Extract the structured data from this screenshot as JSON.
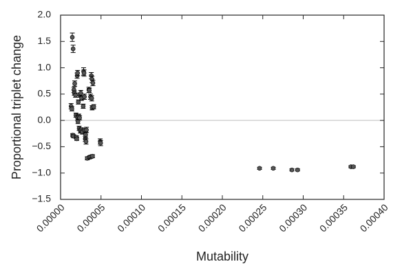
{
  "chart_data": {
    "type": "scatter",
    "title": "",
    "xlabel": "Mutability",
    "ylabel": "Proportional triplet change",
    "xlim": [
      0,
      0.0004
    ],
    "ylim": [
      -1.5,
      2.0
    ],
    "x_ticks": [
      0.0,
      5e-05,
      0.0001,
      0.00015,
      0.0002,
      0.00025,
      0.0003,
      0.00035,
      0.0004
    ],
    "x_tick_labels": [
      "0.00000",
      "0.00005",
      "0.00010",
      "0.00015",
      "0.00020",
      "0.00025",
      "0.00030",
      "0.00035",
      "0.00040"
    ],
    "y_ticks": [
      -1.5,
      -1.0,
      -0.5,
      0.0,
      0.5,
      1.0,
      1.5,
      2.0
    ],
    "y_tick_labels": [
      "−1.5",
      "−1.0",
      "−0.5",
      "0.0",
      "0.5",
      "1.0",
      "1.5",
      "2.0"
    ],
    "reference_line_y": 0,
    "grid": false,
    "colors": {
      "marker": "#555555",
      "errorbar": "#000000",
      "reference_line": "#c8c8c8",
      "frame": "#222222"
    },
    "series": [
      {
        "points": [
          {
            "x": 1.45e-05,
            "y": 1.58,
            "err": 0.08
          },
          {
            "x": 1.55e-05,
            "y": 1.36,
            "err": 0.07
          },
          {
            "x": 1.3e-05,
            "y": 0.27,
            "err": 0.05
          },
          {
            "x": 1.4e-05,
            "y": 0.22,
            "err": 0.04
          },
          {
            "x": 1.5e-05,
            "y": -0.28,
            "err": 0.03
          },
          {
            "x": 1.6e-05,
            "y": -0.3,
            "err": 0.03
          },
          {
            "x": 1.65e-05,
            "y": 0.58,
            "err": 0.05
          },
          {
            "x": 1.7e-05,
            "y": 0.52,
            "err": 0.04
          },
          {
            "x": 1.75e-05,
            "y": 0.7,
            "err": 0.05
          },
          {
            "x": 1.85e-05,
            "y": 0.48,
            "err": 0.04
          },
          {
            "x": 1.9e-05,
            "y": 0.1,
            "err": 0.04
          },
          {
            "x": 1.95e-05,
            "y": -0.32,
            "err": 0.03
          },
          {
            "x": 2e-05,
            "y": -0.35,
            "err": 0.03
          },
          {
            "x": 2.05e-05,
            "y": 0.85,
            "err": 0.05
          },
          {
            "x": 2.1e-05,
            "y": 0.9,
            "err": 0.05
          },
          {
            "x": 2.1e-05,
            "y": 0.05,
            "err": 0.05
          },
          {
            "x": 2.15e-05,
            "y": -0.02,
            "err": 0.04
          },
          {
            "x": 2.2e-05,
            "y": 0.35,
            "err": 0.04
          },
          {
            "x": 2.25e-05,
            "y": 0.08,
            "err": 0.04
          },
          {
            "x": 2.3e-05,
            "y": -0.15,
            "err": 0.04
          },
          {
            "x": 2.35e-05,
            "y": 0.05,
            "err": 0.04
          },
          {
            "x": 2.4e-05,
            "y": 0.48,
            "err": 0.04
          },
          {
            "x": 2.45e-05,
            "y": -0.2,
            "err": 0.04
          },
          {
            "x": 2.5e-05,
            "y": 0.52,
            "err": 0.05
          },
          {
            "x": 2.55e-05,
            "y": -0.18,
            "err": 0.04
          },
          {
            "x": 2.6e-05,
            "y": 0.42,
            "err": 0.04
          },
          {
            "x": 2.7e-05,
            "y": -0.22,
            "err": 0.04
          },
          {
            "x": 2.8e-05,
            "y": 0.27,
            "err": 0.04
          },
          {
            "x": 2.85e-05,
            "y": 0.93,
            "err": 0.07
          },
          {
            "x": 2.9e-05,
            "y": 0.9,
            "err": 0.06
          },
          {
            "x": 2.95e-05,
            "y": 0.45,
            "err": 0.05
          },
          {
            "x": 3e-05,
            "y": -0.2,
            "err": 0.05
          },
          {
            "x": 3.05e-05,
            "y": -0.35,
            "err": 0.05
          },
          {
            "x": 3.1e-05,
            "y": -0.27,
            "err": 0.05
          },
          {
            "x": 3.15e-05,
            "y": -0.4,
            "err": 0.05
          },
          {
            "x": 3.2e-05,
            "y": -0.18,
            "err": 0.05
          },
          {
            "x": 3.3e-05,
            "y": -0.72,
            "err": 0.03
          },
          {
            "x": 3.5e-05,
            "y": 0.58,
            "err": 0.05
          },
          {
            "x": 3.55e-05,
            "y": 0.57,
            "err": 0.04
          },
          {
            "x": 3.6e-05,
            "y": -0.7,
            "err": 0.03
          },
          {
            "x": 3.7e-05,
            "y": 0.45,
            "err": 0.05
          },
          {
            "x": 3.75e-05,
            "y": -0.69,
            "err": 0.03
          },
          {
            "x": 3.8e-05,
            "y": 0.85,
            "err": 0.06
          },
          {
            "x": 3.85e-05,
            "y": 0.42,
            "err": 0.05
          },
          {
            "x": 3.9e-05,
            "y": 0.78,
            "err": 0.06
          },
          {
            "x": 3.9e-05,
            "y": 0.24,
            "err": 0.04
          },
          {
            "x": 3.95e-05,
            "y": -0.68,
            "err": 0.03
          },
          {
            "x": 4e-05,
            "y": 0.71,
            "err": 0.05
          },
          {
            "x": 4.1e-05,
            "y": 0.26,
            "err": 0.04
          },
          {
            "x": 4.9e-05,
            "y": -0.4,
            "err": 0.05
          },
          {
            "x": 4.95e-05,
            "y": -0.43,
            "err": 0.05
          },
          {
            "x": 0.000246,
            "y": -0.91,
            "err": 0.02
          },
          {
            "x": 0.000263,
            "y": -0.91,
            "err": 0.02
          },
          {
            "x": 0.000286,
            "y": -0.94,
            "err": 0.02
          },
          {
            "x": 0.000293,
            "y": -0.94,
            "err": 0.02
          },
          {
            "x": 0.000359,
            "y": -0.88,
            "err": 0.02
          },
          {
            "x": 0.000362,
            "y": -0.88,
            "err": 0.02
          }
        ]
      }
    ]
  }
}
